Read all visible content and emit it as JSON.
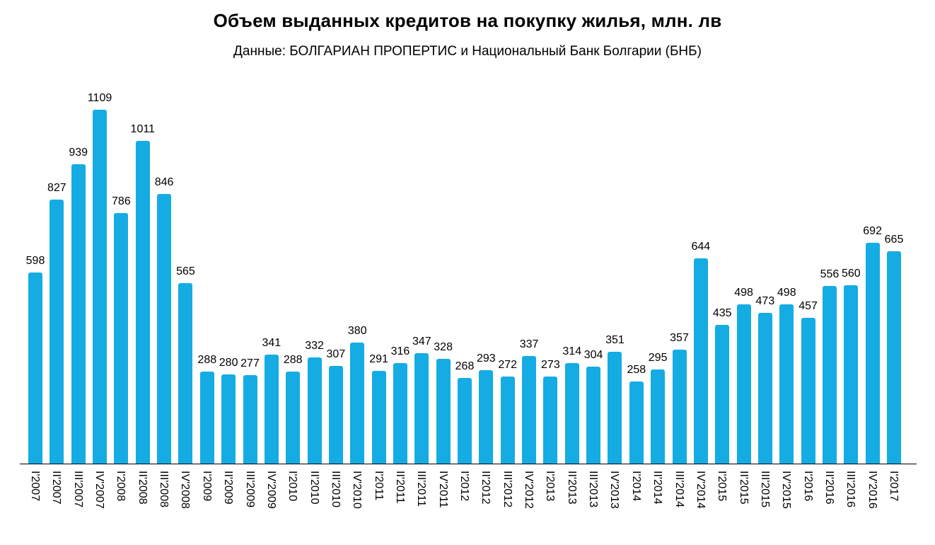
{
  "chart_data": {
    "type": "bar",
    "title": "Объем выданных кредитов на покупку жилья, млн. лв",
    "subtitle": "Данные: БОЛГАРИАН ПРОПЕРТИС и Национальный Банк Болгарии (БНБ)",
    "categories": [
      "I'2007",
      "II'2007",
      "III'2007",
      "IV'2007",
      "I'2008",
      "II'2008",
      "III'2008",
      "IV'2008",
      "I'2009",
      "II'2009",
      "III'2009",
      "IV'2009",
      "I'2010",
      "II'2010",
      "III'2010",
      "IV'2010",
      "I'2011",
      "II'2011",
      "III'2011",
      "IV'2011",
      "I'2012",
      "II'2012",
      "III'2012",
      "IV'2012",
      "I'2013",
      "II'2013",
      "III'2013",
      "IV'2013",
      "I'2014",
      "II'2014",
      "III'2014",
      "IV'2014",
      "I'2015",
      "II'2015",
      "III'2015",
      "IV'2015",
      "I'2016",
      "II'2016",
      "III'2016",
      "IV'2016",
      "I'2017"
    ],
    "values": [
      598,
      827,
      939,
      1109,
      786,
      1011,
      846,
      565,
      288,
      280,
      277,
      341,
      288,
      332,
      307,
      380,
      291,
      316,
      347,
      328,
      268,
      293,
      272,
      337,
      273,
      314,
      304,
      351,
      258,
      295,
      357,
      644,
      435,
      498,
      473,
      498,
      457,
      556,
      560,
      692,
      665
    ],
    "xlabel": "",
    "ylabel": "",
    "ylim": [
      0,
      1150
    ],
    "grid": false,
    "legend": false,
    "value_labels": true,
    "x_tick_rotation": 90,
    "bar_color": "#14ACE3",
    "text_color": "#000000",
    "axis_color": "#000000",
    "background_color": "#FFFFFF"
  }
}
